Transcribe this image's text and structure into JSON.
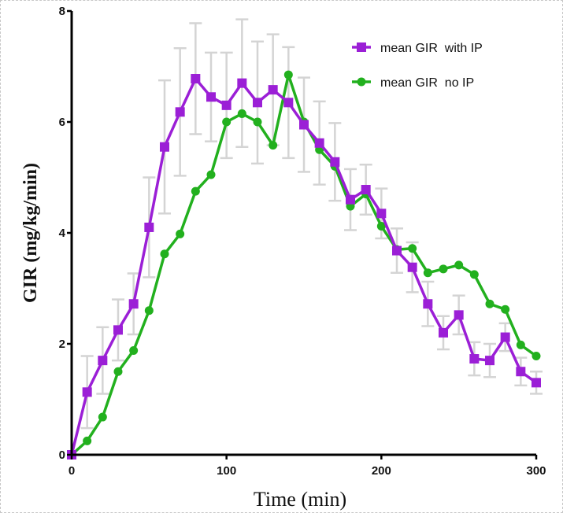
{
  "chart_data": {
    "type": "line",
    "xlabel": "Time (min)",
    "ylabel": "GIR (mg/kg/min)",
    "xlim": [
      0,
      300
    ],
    "ylim": [
      0,
      8
    ],
    "xticks": [
      0,
      100,
      200,
      300
    ],
    "yticks": [
      0,
      2,
      4,
      6,
      8
    ],
    "grid": false,
    "legend_position": "top-right",
    "x": [
      0,
      10,
      20,
      30,
      40,
      50,
      60,
      70,
      80,
      90,
      100,
      110,
      120,
      130,
      140,
      150,
      160,
      170,
      180,
      190,
      200,
      210,
      220,
      230,
      240,
      250,
      260,
      270,
      280,
      290,
      300
    ],
    "series": [
      {
        "name": "mean GIR  with IP",
        "color": "#9b1fd6",
        "marker": "square",
        "values": [
          0.0,
          1.13,
          1.7,
          2.25,
          2.72,
          4.1,
          5.55,
          6.18,
          6.78,
          6.45,
          6.3,
          6.7,
          6.35,
          6.58,
          6.35,
          5.95,
          5.62,
          5.28,
          4.6,
          4.78,
          4.35,
          3.68,
          3.38,
          2.72,
          2.2,
          2.52,
          1.73,
          1.7,
          2.12,
          1.5,
          1.3
        ],
        "error": [
          0,
          0.65,
          0.6,
          0.55,
          0.55,
          0.9,
          1.2,
          1.15,
          1.0,
          0.8,
          0.95,
          1.15,
          1.1,
          1.0,
          1.0,
          0.85,
          0.75,
          0.7,
          0.55,
          0.45,
          0.45,
          0.4,
          0.45,
          0.4,
          0.3,
          0.35,
          0.3,
          0.3,
          0.25,
          0.25,
          0.2
        ]
      },
      {
        "name": "mean GIR  no IP",
        "color": "#22b01e",
        "marker": "circle",
        "values": [
          0.0,
          0.25,
          0.68,
          1.5,
          1.88,
          2.6,
          3.62,
          3.98,
          4.75,
          5.05,
          6.0,
          6.15,
          6.0,
          5.58,
          6.85,
          6.0,
          5.5,
          5.2,
          4.48,
          4.7,
          4.12,
          3.7,
          3.72,
          3.28,
          3.35,
          3.42,
          3.25,
          2.72,
          2.62,
          1.98,
          1.78
        ]
      }
    ]
  }
}
